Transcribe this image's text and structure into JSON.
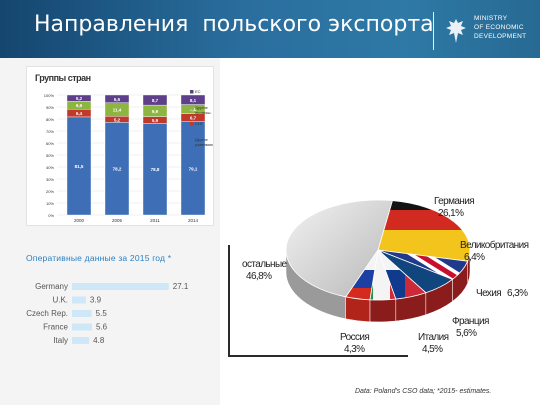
{
  "header": {
    "title": "Направления  польского экспорта",
    "ministry_lines": [
      "MINISTRY",
      "OF ECONOMIC",
      "DEVELOPMENT"
    ]
  },
  "bar_chart_title": "Группы стран",
  "operational_label": "Оперативные данные за 2015 год *",
  "source": "Data: Poland's CSO data; *2015- estimates.",
  "colors": {
    "header": "#1f5b8a",
    "accent": "#2d7fc1",
    "blue_bar": "#3e6fb6",
    "red_bar": "#c0392b",
    "green_bar": "#8db640",
    "purple_bar": "#5d3f8a",
    "hbar": "#cfe8f7"
  },
  "chart_data": [
    {
      "type": "bar",
      "stacked": true,
      "percent": true,
      "title": "Группы стран",
      "categories": [
        "2000",
        "2005",
        "2011",
        "2014"
      ],
      "ylim": [
        0,
        100
      ],
      "yticks": [
        "0%",
        "10%",
        "20%",
        "30%",
        "40%",
        "50%",
        "60%",
        "70%",
        "80%",
        "90%",
        "100%"
      ],
      "series": [
        {
          "name": "Другие развивающиеся",
          "color": "#3e6fb6",
          "values": [
            81.5,
            78.2,
            78.8,
            79.1
          ],
          "labels": [
            "81,5",
            "78,2",
            "78,8",
            "79,1"
          ]
        },
        {
          "name": "СНГ",
          "color": "#c0392b",
          "values": [
            6.4,
            5.2,
            5.9,
            6.7
          ],
          "labels": [
            "6,4",
            "5,2",
            "5,9",
            "6,7"
          ]
        },
        {
          "name": "Другие промыш.",
          "color": "#8db640",
          "values": [
            6.6,
            11.4,
            9.9,
            7.8
          ],
          "labels": [
            "6,6",
            "11,4",
            "9,9",
            "7,8"
          ]
        },
        {
          "name": "ЕС",
          "color": "#5d3f8a",
          "values": [
            5.2,
            6.5,
            8.7,
            8.1
          ],
          "labels": [
            "5,2",
            "6,5",
            "8,7",
            "8,1"
          ]
        }
      ],
      "legend": [
        "ЕС",
        "Другие промыш.",
        "СНГ",
        "Другие развивающиеся"
      ],
      "legend_placement": "right"
    },
    {
      "type": "bar",
      "orientation": "horizontal",
      "categories": [
        "Germany",
        "U.K.",
        "Czech Rep.",
        "France",
        "Italy"
      ],
      "values": [
        27.1,
        3.9,
        5.5,
        5.6,
        4.8
      ],
      "labels": [
        "27.1",
        "3.9",
        "5.5",
        "5.6",
        "4.8"
      ],
      "xlim": [
        0,
        28
      ]
    },
    {
      "type": "pie",
      "three_d": true,
      "slices": [
        {
          "name": "Германия",
          "value": 26.1,
          "label": "26,1%",
          "flag": "germany"
        },
        {
          "name": "Великобритания",
          "value": 6.4,
          "label": "6,4%",
          "flag": "uk"
        },
        {
          "name": "Чехия",
          "value": 6.3,
          "label": "6,3%",
          "flag": "czech"
        },
        {
          "name": "Франция",
          "value": 5.6,
          "label": "5,6%",
          "flag": "france"
        },
        {
          "name": "Италия",
          "value": 4.5,
          "label": "4,5%",
          "flag": "italy"
        },
        {
          "name": "Россия",
          "value": 4.3,
          "label": "4,3%",
          "flag": "russia"
        },
        {
          "name": "остальные",
          "value": 46.8,
          "label": "46,8%",
          "flag": "none"
        }
      ]
    }
  ]
}
